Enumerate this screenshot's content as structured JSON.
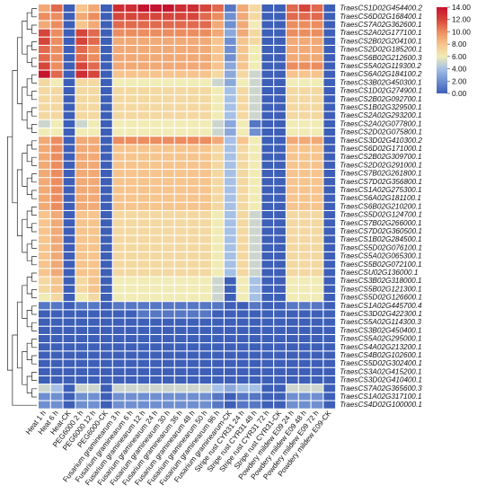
{
  "chart_data": {
    "type": "heatmap",
    "title": "",
    "xlabel": "",
    "ylabel": "",
    "columns": [
      "Heat 1 h",
      "Heat 6 h",
      "Heat-CK",
      "PEG6000 2 h",
      "PEG6000 12 h",
      "PEG6000-CK",
      "Fusarium graminearum 3 h",
      "Fusarium graminearum 6 h",
      "Fusarium graminearum 12 h",
      "Fusarium graminearum 24 h",
      "Fusarium graminearum 30 h",
      "Fusarium graminearum 36 h",
      "Fusarium graminearum 48 h",
      "Fusarium graminearum 50 h",
      "Fusarium graminearum 96 h",
      "Fusarium graminearum-CK",
      "Stripe rust CYR31 24 h",
      "Stripe rust CYR31 48 h",
      "Stripe rust CYR31 72 h",
      "Stripe rust CYR31-CK",
      "Powdery mildew E09 24 h",
      "Powdery mildew E09 48 h",
      "Powdery mildew E09 72 h",
      "Powdery mildew E09-CK"
    ],
    "rows": [
      "TraesCS1D02G454400.2",
      "TraesCS6D02G168400.1",
      "TraesCS7A02G362600.1",
      "TraesCS2A02G177100.1",
      "TraesCS2B02G204100.1",
      "TraesCS2D02G185200.1",
      "TraesCS6B02G212600.3",
      "TraesCS5A02G119300.2",
      "TraesCS6A02G184100.2",
      "TraesCS3B02G450300.1",
      "TraesCS1D02G274900.1",
      "TraesCS2B02G092700.1",
      "TraesCS1B02G329500.1",
      "TraesCS2A02G293200.1",
      "TraesCS2A02G077800.1",
      "TraesCS2D02G075800.1",
      "TraesCS3D02G410300.2",
      "TraesCS6D02G171000.1",
      "TraesCS2B02G309700.1",
      "TraesCS2D02G291000.1",
      "TraesCS7B02G261800.1",
      "TraesCS7D02G356800.1",
      "TraesCS1A02G275300.1",
      "TraesCS6A02G181100.1",
      "TraesCS6B02G210200.1",
      "TraesCS5D02G124700.1",
      "TraesCS7B02G266000.1",
      "TraesCS7D02G360500.1",
      "TraesCS1B02G284500.1",
      "TraesCS5D02G076100.1",
      "TraesCS5A02G065300.1",
      "TraesCS5B02G072100.1",
      "TraesCSU02G136000.1",
      "TraesCS3B02G318000.1",
      "TraesCS5B02G121300.1",
      "TraesCS5D02G126600.1",
      "TraesCS1A02G445700.4",
      "TraesCS3D02G422300.1",
      "TraesCS5A02G114300.3",
      "TraesCS3B02G450400.1",
      "TraesCS5A02G295000.1",
      "TraesCS4A02G213200.1",
      "TraesCS4B02G102600.1",
      "TraesCS5D02G302400.1",
      "TraesCS3A02G415200.1",
      "TraesCS3D02G410400.1",
      "TraesCS7A02G365600.3",
      "TraesCS1A02G317100.1",
      "TraesCS4D02G100000.1"
    ],
    "values": [
      [
        9,
        11,
        0,
        8,
        9,
        0,
        13,
        13,
        14,
        14,
        14,
        13,
        13,
        12,
        11,
        1,
        9,
        7,
        0,
        0,
        11,
        12,
        11,
        0
      ],
      [
        10,
        10,
        0,
        9,
        10,
        0,
        12,
        12,
        12,
        12,
        12,
        12,
        12,
        11,
        10,
        2,
        9,
        7,
        0,
        0,
        11,
        11,
        11,
        0
      ],
      [
        9,
        10,
        0,
        8,
        9,
        0,
        11,
        11,
        11,
        11,
        11,
        11,
        11,
        11,
        9,
        2,
        9,
        6,
        0,
        0,
        10,
        10,
        10,
        0
      ],
      [
        12,
        10,
        0,
        12,
        11,
        0,
        10,
        10,
        10,
        10,
        10,
        10,
        10,
        10,
        9,
        3,
        9,
        7,
        0,
        0,
        10,
        10,
        10,
        0
      ],
      [
        12,
        10,
        0,
        12,
        11,
        0,
        9,
        9,
        9,
        9,
        9,
        9,
        9,
        9,
        8,
        2,
        8,
        7,
        0,
        0,
        9,
        9,
        9,
        0
      ],
      [
        11,
        10,
        0,
        11,
        10,
        0,
        9,
        9,
        9,
        9,
        9,
        9,
        9,
        9,
        8,
        2,
        8,
        6,
        0,
        0,
        9,
        9,
        9,
        0
      ],
      [
        11,
        10,
        0,
        11,
        10,
        0,
        9,
        9,
        9,
        9,
        9,
        9,
        9,
        9,
        8,
        2,
        8,
        6,
        0,
        0,
        9,
        9,
        9,
        0
      ],
      [
        12,
        10,
        0,
        12,
        11,
        0,
        9,
        9,
        9,
        9,
        9,
        9,
        9,
        9,
        8,
        3,
        8,
        6,
        0,
        0,
        10,
        10,
        10,
        0
      ],
      [
        14,
        11,
        0,
        13,
        12,
        0,
        8,
        8,
        8,
        8,
        8,
        8,
        8,
        8,
        7,
        3,
        7,
        5,
        0,
        0,
        8,
        8,
        8,
        0
      ],
      [
        7,
        6,
        0,
        7,
        7,
        0,
        6,
        6,
        6,
        6,
        6,
        6,
        6,
        6,
        5,
        3,
        6,
        5,
        0,
        0,
        6,
        6,
        6,
        0
      ],
      [
        7,
        7,
        0,
        7,
        7,
        0,
        7,
        7,
        7,
        7,
        7,
        7,
        7,
        7,
        6,
        4,
        7,
        5,
        0,
        0,
        7,
        7,
        7,
        0
      ],
      [
        7,
        7,
        0,
        7,
        7,
        0,
        7,
        7,
        7,
        7,
        7,
        7,
        7,
        7,
        6,
        4,
        7,
        5,
        0,
        0,
        7,
        7,
        7,
        0
      ],
      [
        7,
        7,
        0,
        7,
        7,
        0,
        7,
        7,
        7,
        7,
        7,
        7,
        7,
        7,
        6,
        4,
        7,
        5,
        0,
        0,
        7,
        7,
        7,
        0
      ],
      [
        7,
        7,
        0,
        7,
        7,
        0,
        7,
        7,
        7,
        7,
        7,
        7,
        7,
        7,
        6,
        4,
        7,
        5,
        0,
        0,
        7,
        7,
        7,
        0
      ],
      [
        5,
        6,
        0,
        5,
        6,
        0,
        6,
        6,
        6,
        6,
        6,
        6,
        6,
        6,
        5,
        3,
        6,
        1,
        0,
        0,
        6,
        6,
        6,
        0
      ],
      [
        6,
        6,
        0,
        6,
        6,
        0,
        6,
        6,
        6,
        6,
        6,
        6,
        6,
        6,
        5,
        3,
        6,
        2,
        0,
        0,
        6,
        6,
        6,
        0
      ],
      [
        9,
        10,
        0,
        9,
        9,
        0,
        10,
        10,
        10,
        10,
        10,
        10,
        10,
        10,
        9,
        4,
        8,
        6,
        0,
        0,
        9,
        9,
        9,
        0
      ],
      [
        9,
        10,
        0,
        9,
        9,
        0,
        8,
        8,
        8,
        8,
        8,
        8,
        8,
        8,
        7,
        4,
        7,
        6,
        0,
        0,
        8,
        8,
        8,
        0
      ],
      [
        9,
        10,
        0,
        9,
        9,
        0,
        8,
        8,
        8,
        8,
        8,
        8,
        8,
        8,
        7,
        4,
        7,
        6,
        0,
        0,
        8,
        8,
        8,
        0
      ],
      [
        9,
        10,
        0,
        9,
        9,
        0,
        8,
        8,
        8,
        8,
        8,
        8,
        8,
        8,
        7,
        4,
        7,
        6,
        0,
        0,
        8,
        8,
        8,
        0
      ],
      [
        9,
        10,
        0,
        9,
        9,
        0,
        8,
        8,
        8,
        8,
        8,
        8,
        8,
        8,
        7,
        4,
        7,
        6,
        0,
        0,
        8,
        8,
        8,
        0
      ],
      [
        9,
        10,
        0,
        9,
        9,
        0,
        8,
        8,
        8,
        8,
        8,
        8,
        8,
        8,
        7,
        4,
        7,
        6,
        0,
        0,
        8,
        8,
        8,
        0
      ],
      [
        9,
        10,
        0,
        9,
        9,
        0,
        8,
        8,
        8,
        8,
        8,
        8,
        8,
        8,
        7,
        4,
        7,
        6,
        0,
        0,
        8,
        8,
        8,
        0
      ],
      [
        9,
        10,
        0,
        9,
        9,
        0,
        8,
        8,
        8,
        8,
        8,
        8,
        8,
        8,
        7,
        4,
        7,
        6,
        0,
        0,
        8,
        8,
        8,
        0
      ],
      [
        9,
        10,
        0,
        9,
        9,
        0,
        8,
        8,
        8,
        8,
        8,
        8,
        8,
        8,
        7,
        4,
        7,
        6,
        0,
        0,
        8,
        8,
        8,
        0
      ],
      [
        8,
        9,
        0,
        8,
        8,
        0,
        7,
        7,
        7,
        7,
        7,
        7,
        7,
        7,
        6,
        4,
        7,
        5,
        0,
        0,
        7,
        7,
        7,
        0
      ],
      [
        8,
        9,
        0,
        8,
        8,
        0,
        7,
        7,
        7,
        7,
        7,
        7,
        7,
        7,
        6,
        4,
        7,
        5,
        0,
        0,
        7,
        7,
        7,
        0
      ],
      [
        8,
        9,
        0,
        8,
        8,
        0,
        7,
        7,
        7,
        7,
        7,
        7,
        7,
        7,
        6,
        4,
        7,
        5,
        0,
        0,
        7,
        7,
        7,
        0
      ],
      [
        8,
        9,
        0,
        8,
        8,
        0,
        7,
        7,
        7,
        7,
        7,
        7,
        7,
        7,
        6,
        4,
        7,
        5,
        0,
        0,
        7,
        7,
        7,
        0
      ],
      [
        8,
        9,
        0,
        8,
        8,
        0,
        7,
        7,
        7,
        7,
        7,
        7,
        7,
        7,
        6,
        4,
        7,
        5,
        0,
        0,
        7,
        7,
        7,
        0
      ],
      [
        8,
        9,
        0,
        8,
        8,
        0,
        7,
        7,
        7,
        7,
        7,
        7,
        7,
        7,
        6,
        4,
        7,
        5,
        0,
        0,
        7,
        7,
        7,
        0
      ],
      [
        8,
        9,
        0,
        8,
        8,
        0,
        7,
        7,
        7,
        7,
        7,
        7,
        7,
        7,
        6,
        4,
        7,
        5,
        0,
        0,
        7,
        7,
        7,
        0
      ],
      [
        8,
        9,
        0,
        8,
        8,
        0,
        7,
        7,
        7,
        7,
        7,
        7,
        7,
        7,
        6,
        4,
        7,
        5,
        0,
        0,
        7,
        7,
        7,
        0
      ],
      [
        7,
        8,
        0,
        7,
        8,
        0,
        6,
        6,
        6,
        6,
        6,
        6,
        6,
        6,
        5,
        0,
        6,
        4,
        0,
        0,
        6,
        6,
        6,
        0
      ],
      [
        7,
        8,
        0,
        7,
        8,
        0,
        6,
        6,
        6,
        6,
        6,
        6,
        6,
        6,
        5,
        0,
        6,
        4,
        0,
        0,
        6,
        6,
        6,
        0
      ],
      [
        6,
        7,
        0,
        6,
        7,
        0,
        6,
        6,
        6,
        6,
        6,
        6,
        6,
        6,
        5,
        0,
        6,
        4,
        0,
        0,
        6,
        6,
        6,
        0
      ],
      [
        1,
        1,
        0,
        1,
        1,
        0,
        1,
        1,
        1,
        1,
        1,
        1,
        1,
        1,
        1,
        0,
        0,
        1,
        0,
        0,
        1,
        1,
        1,
        0
      ],
      [
        0,
        0,
        0,
        0,
        0,
        0,
        0,
        0,
        1,
        1,
        1,
        1,
        1,
        1,
        0,
        0,
        0,
        0,
        0,
        0,
        0,
        0,
        0,
        0
      ],
      [
        0,
        0,
        0,
        0,
        0,
        0,
        0,
        0,
        0,
        0,
        0,
        0,
        0,
        0,
        0,
        0,
        0,
        0,
        0,
        0,
        0,
        0,
        0,
        0
      ],
      [
        0,
        0,
        0,
        0,
        0,
        0,
        0,
        0,
        0,
        0,
        0,
        0,
        0,
        0,
        0,
        0,
        0,
        0,
        0,
        0,
        0,
        0,
        0,
        0
      ],
      [
        0,
        0,
        0,
        0,
        0,
        0,
        0,
        0,
        0,
        0,
        0,
        0,
        0,
        0,
        0,
        0,
        0,
        0,
        0,
        0,
        0,
        0,
        0,
        0
      ],
      [
        0,
        0,
        0,
        0,
        0,
        0,
        0,
        0,
        0,
        0,
        0,
        0,
        0,
        0,
        0,
        0,
        0,
        0,
        0,
        0,
        0,
        0,
        0,
        0
      ],
      [
        0,
        0,
        0,
        0,
        0,
        0,
        0,
        0,
        0,
        0,
        0,
        0,
        0,
        0,
        0,
        0,
        0,
        0,
        0,
        0,
        0,
        0,
        0,
        0
      ],
      [
        0,
        0,
        0,
        0,
        0,
        0,
        0,
        0,
        0,
        0,
        0,
        0,
        0,
        0,
        0,
        0,
        0,
        0,
        0,
        0,
        0,
        0,
        0,
        0
      ],
      [
        0,
        0,
        0,
        0,
        0,
        0,
        0,
        0,
        0,
        0,
        0,
        0,
        0,
        0,
        0,
        0,
        0,
        0,
        0,
        0,
        0,
        0,
        0,
        0
      ],
      [
        0,
        0,
        0,
        0,
        0,
        0,
        0,
        0,
        0,
        0,
        0,
        0,
        0,
        0,
        0,
        0,
        0,
        0,
        0,
        0,
        0,
        0,
        0,
        0
      ],
      [
        5,
        4,
        0,
        5,
        5,
        0,
        5,
        5,
        5,
        5,
        5,
        5,
        5,
        5,
        4,
        3,
        4,
        4,
        0,
        0,
        5,
        5,
        5,
        0
      ],
      [
        2,
        2,
        0,
        2,
        2,
        0,
        2,
        2,
        2,
        2,
        2,
        2,
        2,
        2,
        1,
        0,
        1,
        1,
        0,
        0,
        2,
        2,
        2,
        0
      ],
      [
        2,
        2,
        0,
        2,
        2,
        0,
        2,
        2,
        2,
        2,
        2,
        2,
        2,
        2,
        1,
        0,
        1,
        1,
        0,
        0,
        2,
        2,
        2,
        0
      ]
    ],
    "color_scale": {
      "min": 0,
      "max": 14,
      "ticks": [
        "14.00",
        "12.00",
        "10.00",
        "8.00",
        "6.00",
        "4.00",
        "2.00",
        "0.00"
      ],
      "colors": [
        "#3d5fb8",
        "#6f8fd0",
        "#a6c0e6",
        "#f1ebb5",
        "#f6c48c",
        "#ec8d5f",
        "#d6453a",
        "#c5142e"
      ]
    },
    "dendrogram": "left",
    "legend_placement": "right"
  }
}
